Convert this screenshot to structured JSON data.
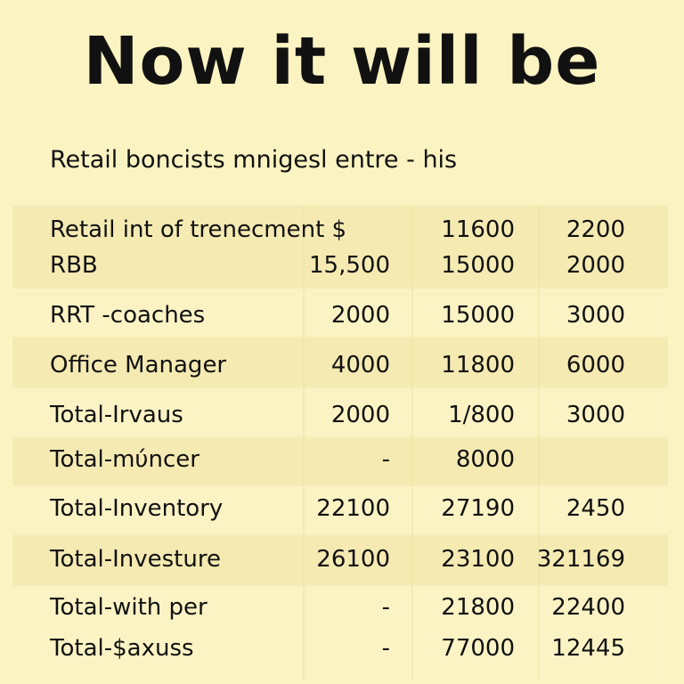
{
  "title": "Now it will be",
  "subtitle": "Retail boncists mnigesl entre   -   his",
  "table": {
    "rows": [
      {
        "label": "Retail int of trenecment $",
        "c1": "",
        "c2": "11600",
        "c3": "2200"
      },
      {
        "label": "RBB",
        "c1": "15,500",
        "c2": "15000",
        "c3": "2000"
      },
      {
        "label": "RRT  -coaches",
        "c1": "2000",
        "c2": "15000",
        "c3": "3000"
      },
      {
        "label": "Office Manager",
        "c1": "4000",
        "c2": "11800",
        "c3": "6000"
      },
      {
        "label": "Total-Irvaus",
        "c1": "2000",
        "c2": "1/800",
        "c3": "3000"
      },
      {
        "label": "Total-mύncer",
        "c1": "-",
        "c2": "8000",
        "c3": ""
      },
      {
        "label": "Total-Inventory",
        "c1": "22100",
        "c2": "27190",
        "c3": "2450"
      },
      {
        "label": "Total-Investure",
        "c1": "26100",
        "c2": "23100",
        "c3": "321169"
      },
      {
        "label": "Total-with  per",
        "c1": "-",
        "c2": "21800",
        "c3": "22400"
      },
      {
        "label": "Total-$axuss",
        "c1": "-",
        "c2": "77000",
        "c3": "12445"
      }
    ]
  }
}
